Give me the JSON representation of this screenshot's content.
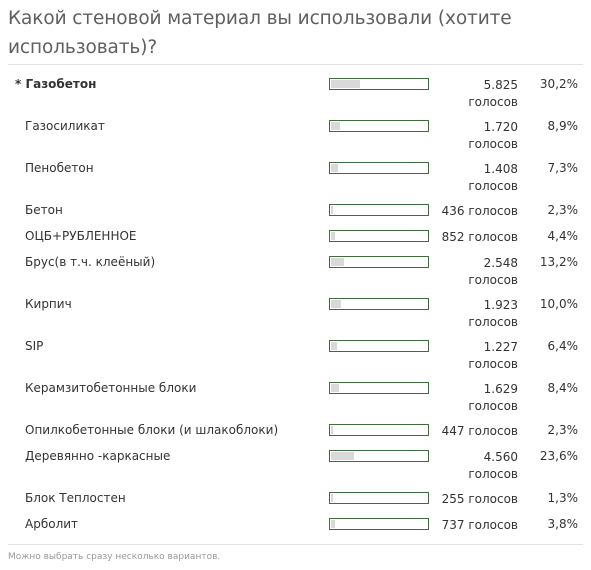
{
  "poll": {
    "title": "Какой стеновой материал вы использовали (хотите использовать)?",
    "max_percent": 30.2,
    "options": [
      {
        "label": "* Газобетон",
        "count": "5.825 голосов",
        "percent": "30,2%",
        "value": 30.2,
        "selected": true
      },
      {
        "label": "Газосиликат",
        "count": "1.720 голосов",
        "percent": "8,9%",
        "value": 8.9,
        "selected": false
      },
      {
        "label": "Пенобетон",
        "count": "1.408 голосов",
        "percent": "7,3%",
        "value": 7.3,
        "selected": false
      },
      {
        "label": "Бетон",
        "count": "436 голосов",
        "percent": "2,3%",
        "value": 2.3,
        "selected": false
      },
      {
        "label": "ОЦБ+РУБЛЕННОЕ",
        "count": "852 голосов",
        "percent": "4,4%",
        "value": 4.4,
        "selected": false
      },
      {
        "label": "Брус(в т.ч. клеёный)",
        "count": "2.548 голосов",
        "percent": "13,2%",
        "value": 13.2,
        "selected": false
      },
      {
        "label": "Кирпич",
        "count": "1.923 голосов",
        "percent": "10,0%",
        "value": 10.0,
        "selected": false
      },
      {
        "label": "SIP",
        "count": "1.227 голосов",
        "percent": "6,4%",
        "value": 6.4,
        "selected": false
      },
      {
        "label": "Керамзитобетонные блоки",
        "count": "1.629 голосов",
        "percent": "8,4%",
        "value": 8.4,
        "selected": false
      },
      {
        "label": "Опилкобетонные блоки (и шлакоблоки)",
        "count": "447 голосов",
        "percent": "2,3%",
        "value": 2.3,
        "selected": false
      },
      {
        "label": "Деревянно -каркасные",
        "count": "4.560 голосов",
        "percent": "23,6%",
        "value": 23.6,
        "selected": false
      },
      {
        "label": "Блок Теплостен",
        "count": "255 голосов",
        "percent": "1,3%",
        "value": 1.3,
        "selected": false
      },
      {
        "label": "Арболит",
        "count": "737 голосов",
        "percent": "3,8%",
        "value": 3.8,
        "selected": false
      }
    ],
    "footnote": "Можно выбрать сразу несколько вариантов."
  }
}
